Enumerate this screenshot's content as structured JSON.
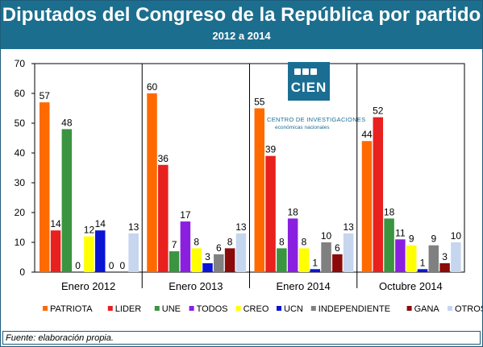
{
  "header": {
    "title": "Diputados del Congreso de la República por partido",
    "subtitle": "2012 a 2014"
  },
  "footer": {
    "text": "Fuente: elaboración propia."
  },
  "logo": {
    "word": "CIEN",
    "line1": "CENTRO DE INVESTIGACIONES",
    "line2": "económicas nacionales"
  },
  "chart_data": {
    "type": "bar",
    "categories": [
      "Enero 2012",
      "Enero 2013",
      "Enero 2014",
      "Octubre 2014"
    ],
    "series": [
      {
        "name": "PATRIOTA",
        "color": "#ff6a00",
        "values": [
          57,
          60,
          55,
          44
        ]
      },
      {
        "name": "LIDER",
        "color": "#e8201e",
        "values": [
          14,
          36,
          39,
          52
        ]
      },
      {
        "name": "UNE",
        "color": "#3a9440",
        "values": [
          48,
          7,
          8,
          18
        ]
      },
      {
        "name": "TODOS",
        "color": "#8a1fe0",
        "values": [
          0,
          17,
          18,
          11
        ]
      },
      {
        "name": "CREO",
        "color": "#ffff00",
        "values": [
          12,
          8,
          8,
          9
        ]
      },
      {
        "name": "UCN",
        "color": "#0a14d4",
        "values": [
          14,
          3,
          1,
          1
        ]
      },
      {
        "name": "INDEPENDIENTE",
        "color": "#808080",
        "values": [
          0,
          6,
          10,
          9
        ]
      },
      {
        "name": "GANA",
        "color": "#8b0a0a",
        "values": [
          0,
          8,
          6,
          3
        ]
      },
      {
        "name": "OTROS",
        "color": "#c5d6ee",
        "values": [
          13,
          13,
          13,
          10
        ]
      }
    ],
    "ylim": [
      0,
      70
    ],
    "yticks": [
      0,
      10,
      20,
      30,
      40,
      50,
      60,
      70
    ],
    "legend_position": "bottom",
    "grid": false
  }
}
